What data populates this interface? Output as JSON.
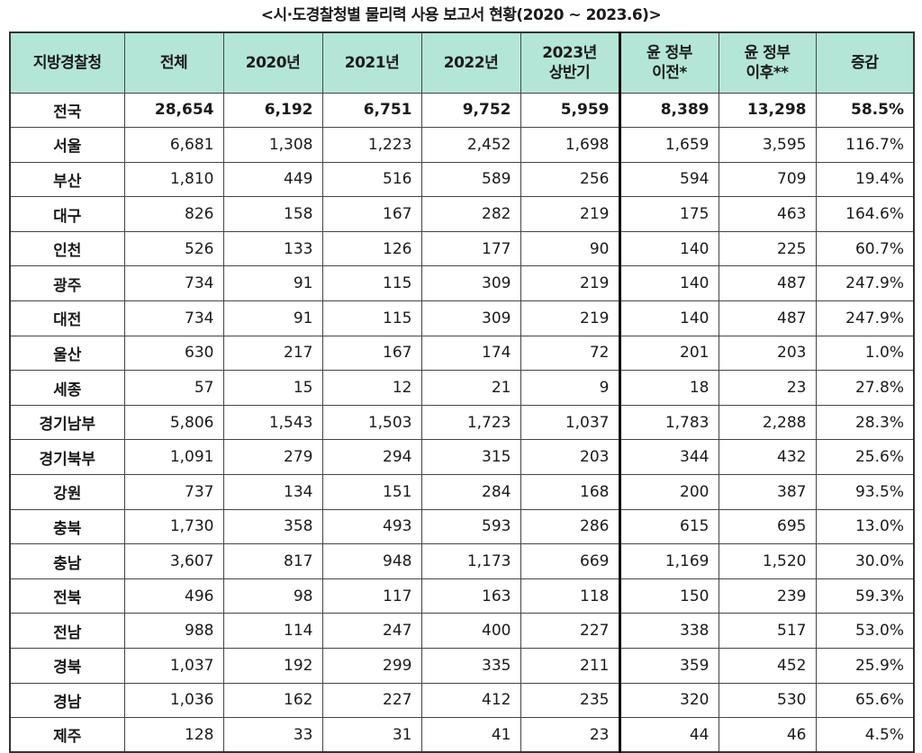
{
  "title": "<시·도경찰청별 물리력 사용 보고서 현황(2020 ~ 2023.6)>",
  "header_color": "#b3e6d6",
  "columns": [
    {
      "line1": "지방경찰청",
      "line2": ""
    },
    {
      "line1": "전체",
      "line2": ""
    },
    {
      "line1": "2020년",
      "line2": ""
    },
    {
      "line1": "2021년",
      "line2": ""
    },
    {
      "line1": "2022년",
      "line2": ""
    },
    {
      "line1": "2023년",
      "line2": "상반기"
    },
    {
      "line1": "윤 정부",
      "line2": "이전*"
    },
    {
      "line1": "윤 정부",
      "line2": "이후**"
    },
    {
      "line1": "증감",
      "line2": ""
    }
  ],
  "rows": [
    [
      "전국",
      "28,654",
      "6,192",
      "6,751",
      "9,752",
      "5,959",
      "8,389",
      "13,298",
      "58.5%"
    ],
    [
      "서울",
      "6,681",
      "1,308",
      "1,223",
      "2,452",
      "1,698",
      "1,659",
      "3,595",
      "116.7%"
    ],
    [
      "부산",
      "1,810",
      "449",
      "516",
      "589",
      "256",
      "594",
      "709",
      "19.4%"
    ],
    [
      "대구",
      "826",
      "158",
      "167",
      "282",
      "219",
      "175",
      "463",
      "164.6%"
    ],
    [
      "인천",
      "526",
      "133",
      "126",
      "177",
      "90",
      "140",
      "225",
      "60.7%"
    ],
    [
      "광주",
      "734",
      "91",
      "115",
      "309",
      "219",
      "140",
      "487",
      "247.9%"
    ],
    [
      "대전",
      "734",
      "91",
      "115",
      "309",
      "219",
      "140",
      "487",
      "247.9%"
    ],
    [
      "울산",
      "630",
      "217",
      "167",
      "174",
      "72",
      "201",
      "203",
      "1.0%"
    ],
    [
      "세종",
      "57",
      "15",
      "12",
      "21",
      "9",
      "18",
      "23",
      "27.8%"
    ],
    [
      "경기남부",
      "5,806",
      "1,543",
      "1,503",
      "1,723",
      "1,037",
      "1,783",
      "2,288",
      "28.3%"
    ],
    [
      "경기북부",
      "1,091",
      "279",
      "294",
      "315",
      "203",
      "344",
      "432",
      "25.6%"
    ],
    [
      "강원",
      "737",
      "134",
      "151",
      "284",
      "168",
      "200",
      "387",
      "93.5%"
    ],
    [
      "충북",
      "1,730",
      "358",
      "493",
      "593",
      "286",
      "615",
      "695",
      "13.0%"
    ],
    [
      "충남",
      "3,607",
      "817",
      "948",
      "1,173",
      "669",
      "1,169",
      "1,520",
      "30.0%"
    ],
    [
      "전북",
      "496",
      "98",
      "117",
      "163",
      "118",
      "150",
      "239",
      "59.3%"
    ],
    [
      "전남",
      "988",
      "114",
      "247",
      "400",
      "227",
      "338",
      "517",
      "53.0%"
    ],
    [
      "경북",
      "1,037",
      "192",
      "299",
      "335",
      "211",
      "359",
      "452",
      "25.9%"
    ],
    [
      "경남",
      "1,036",
      "162",
      "227",
      "412",
      "235",
      "320",
      "530",
      "65.6%"
    ],
    [
      "제주",
      "128",
      "33",
      "31",
      "41",
      "23",
      "44",
      "46",
      "4.5%"
    ]
  ]
}
